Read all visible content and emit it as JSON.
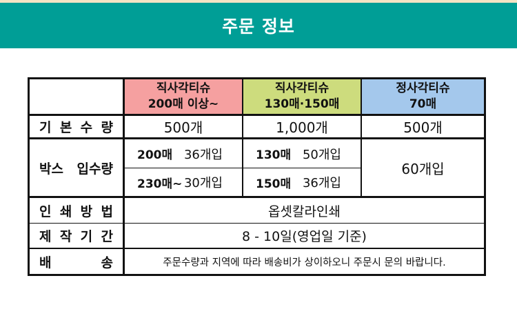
{
  "banner": {
    "title": "주문 정보",
    "bg_color": "#009E96",
    "top_strip_color": "#F4E4C4"
  },
  "table": {
    "border_color": "#111111",
    "columns": [
      {
        "line1": "직사각티슈",
        "line2": "200매 이상~",
        "color": "#F5A0A0"
      },
      {
        "line1": "직사각티슈",
        "line2": "130매·150매",
        "color": "#CDDC7D"
      },
      {
        "line1": "정사각티슈",
        "line2": "70매",
        "color": "#A4C8EC"
      }
    ],
    "rows": {
      "basic_qty": {
        "label": "기 본 수 량",
        "values": [
          "500개",
          "1,000개",
          "500개"
        ]
      },
      "box_qty": {
        "label": "박스 입수량",
        "col1": [
          {
            "size": "200매",
            "count": "36개입"
          },
          {
            "size": "230매~",
            "count": "30개입"
          }
        ],
        "col2": [
          {
            "size": "130매",
            "count": "50개입"
          },
          {
            "size": "150매",
            "count": "36개입"
          }
        ],
        "col3": "60개입"
      },
      "print_method": {
        "label": "인 쇄 방 법",
        "value": "옵셋칼라인쇄"
      },
      "production_period": {
        "label": "제 작 기 간",
        "value": "8 - 10일(영업일 기준)"
      },
      "shipping": {
        "label": "배 송",
        "value": "주문수량과 지역에 따라 배송비가 상이하오니 주문시 문의 바랍니다."
      }
    }
  }
}
